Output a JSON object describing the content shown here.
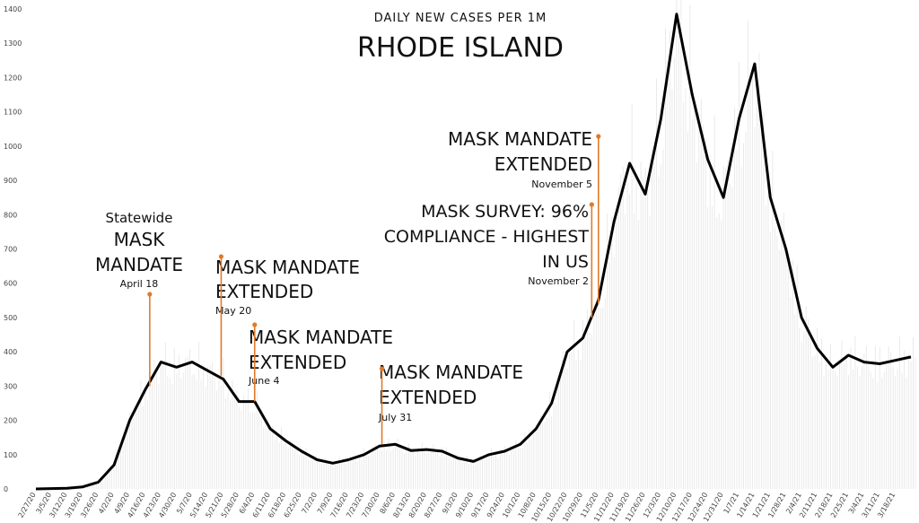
{
  "chart_data": {
    "type": "line",
    "title": "RHODE ISLAND",
    "subtitle": "DAILY NEW CASES PER 1M",
    "xlabel": "",
    "ylabel": "",
    "ylim": [
      0,
      1400
    ],
    "yticks": [
      0,
      100,
      200,
      300,
      400,
      500,
      600,
      700,
      800,
      900,
      1000,
      1100,
      1200,
      1300,
      1400
    ],
    "grid": false,
    "xtick_labels": [
      "2/27/20",
      "3/5/20",
      "3/12/20",
      "3/19/20",
      "3/26/20",
      "4/2/20",
      "4/9/20",
      "4/16/20",
      "4/23/20",
      "4/30/20",
      "5/7/20",
      "5/14/20",
      "5/21/20",
      "5/28/20",
      "6/4/20",
      "6/11/20",
      "6/18/20",
      "6/25/20",
      "7/2/20",
      "7/9/20",
      "7/16/20",
      "7/23/20",
      "7/30/20",
      "8/6/20",
      "8/13/20",
      "8/20/20",
      "8/27/20",
      "9/3/20",
      "9/10/20",
      "9/17/20",
      "9/24/20",
      "10/1/20",
      "10/8/20",
      "10/15/20",
      "10/22/20",
      "10/29/20",
      "11/5/20",
      "11/12/20",
      "11/19/20",
      "11/26/20",
      "12/3/20",
      "12/10/20",
      "12/17/20",
      "12/24/20",
      "12/31/20",
      "1/7/21",
      "1/14/21",
      "1/21/21",
      "1/28/21",
      "2/4/21",
      "2/11/21",
      "2/18/21",
      "2/25/21",
      "3/4/21",
      "3/11/21",
      "3/18/21"
    ],
    "series": [
      {
        "color": "#000000",
        "points": [
          {
            "x": "2/27/20",
            "y": 0
          },
          {
            "x": "3/5/20",
            "y": 1
          },
          {
            "x": "3/12/20",
            "y": 2
          },
          {
            "x": "3/19/20",
            "y": 6
          },
          {
            "x": "3/26/20",
            "y": 20
          },
          {
            "x": "4/2/20",
            "y": 70
          },
          {
            "x": "4/9/20",
            "y": 200
          },
          {
            "x": "4/16/20",
            "y": 290
          },
          {
            "x": "4/23/20",
            "y": 370
          },
          {
            "x": "4/30/20",
            "y": 355
          },
          {
            "x": "5/7/20",
            "y": 370
          },
          {
            "x": "5/14/20",
            "y": 345
          },
          {
            "x": "5/21/20",
            "y": 320
          },
          {
            "x": "5/28/20",
            "y": 255
          },
          {
            "x": "6/4/20",
            "y": 255
          },
          {
            "x": "6/11/20",
            "y": 175
          },
          {
            "x": "6/18/20",
            "y": 140
          },
          {
            "x": "6/25/20",
            "y": 110
          },
          {
            "x": "7/2/20",
            "y": 85
          },
          {
            "x": "7/9/20",
            "y": 75
          },
          {
            "x": "7/16/20",
            "y": 85
          },
          {
            "x": "7/23/20",
            "y": 100
          },
          {
            "x": "7/30/20",
            "y": 125
          },
          {
            "x": "8/6/20",
            "y": 130
          },
          {
            "x": "8/13/20",
            "y": 112
          },
          {
            "x": "8/20/20",
            "y": 115
          },
          {
            "x": "8/27/20",
            "y": 110
          },
          {
            "x": "9/3/20",
            "y": 90
          },
          {
            "x": "9/10/20",
            "y": 80
          },
          {
            "x": "9/17/20",
            "y": 100
          },
          {
            "x": "9/24/20",
            "y": 110
          },
          {
            "x": "10/1/20",
            "y": 130
          },
          {
            "x": "10/8/20",
            "y": 175
          },
          {
            "x": "10/15/20",
            "y": 250
          },
          {
            "x": "10/22/20",
            "y": 400
          },
          {
            "x": "10/29/20",
            "y": 440
          },
          {
            "x": "11/5/20",
            "y": 550
          },
          {
            "x": "11/12/20",
            "y": 780
          },
          {
            "x": "11/19/20",
            "y": 950
          },
          {
            "x": "11/26/20",
            "y": 860
          },
          {
            "x": "12/3/20",
            "y": 1080
          },
          {
            "x": "12/10/20",
            "y": 1385
          },
          {
            "x": "12/17/20",
            "y": 1150
          },
          {
            "x": "12/24/20",
            "y": 960
          },
          {
            "x": "12/31/20",
            "y": 850
          },
          {
            "x": "1/7/21",
            "y": 1080
          },
          {
            "x": "1/14/21",
            "y": 1240
          },
          {
            "x": "1/21/21",
            "y": 850
          },
          {
            "x": "1/28/21",
            "y": 700
          },
          {
            "x": "2/4/21",
            "y": 500
          },
          {
            "x": "2/11/21",
            "y": 410
          },
          {
            "x": "2/18/21",
            "y": 355
          },
          {
            "x": "2/25/21",
            "y": 390
          },
          {
            "x": "3/4/21",
            "y": 370
          },
          {
            "x": "3/11/21",
            "y": 365
          },
          {
            "x": "3/18/21",
            "y": 375
          },
          {
            "x": "3/25/21",
            "y": 385
          }
        ]
      }
    ],
    "annotations": [
      {
        "lines": [
          "Statewide",
          "MASK",
          "MANDATE"
        ],
        "date": "April 18",
        "x": "4/18/20",
        "y": 300
      },
      {
        "lines": [
          "MASK MANDATE",
          "EXTENDED"
        ],
        "date": "May 20",
        "x": "5/20/20",
        "y": 330
      },
      {
        "lines": [
          "MASK MANDATE",
          "EXTENDED"
        ],
        "date": "June 4",
        "x": "6/4/20",
        "y": 255
      },
      {
        "lines": [
          "MASK MANDATE",
          "EXTENDED"
        ],
        "date": "July 31",
        "x": "7/31/20",
        "y": 130
      },
      {
        "lines": [
          "MASK SURVEY: 96%",
          "COMPLIANCE - HIGHEST",
          "IN US"
        ],
        "date": "November 2",
        "x": "11/2/20",
        "y": 500
      },
      {
        "lines": [
          "MASK MANDATE",
          "EXTENDED"
        ],
        "date": "November 5",
        "x": "11/5/20",
        "y": 540
      }
    ],
    "annotation_color": "#e07b2a"
  }
}
